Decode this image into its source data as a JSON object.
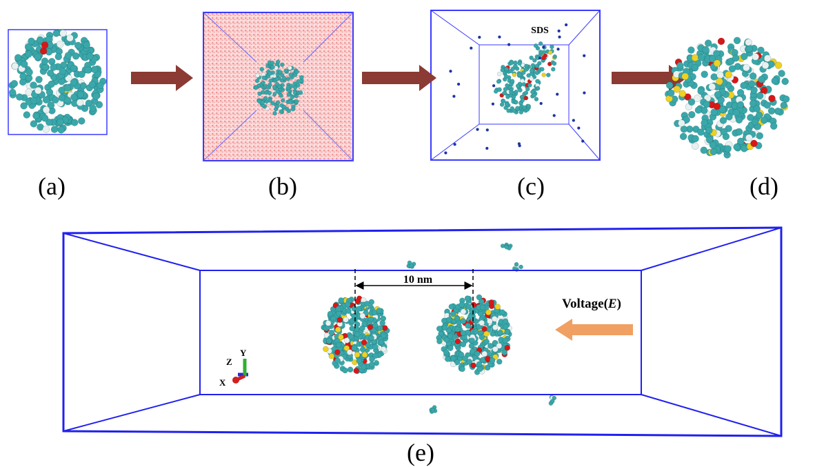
{
  "panels": {
    "a": "(a)",
    "b": "(b)",
    "c": "(c)",
    "d": "(d)",
    "e": "(e)"
  },
  "annotations": {
    "sds": "SDS",
    "distance": "10 nm",
    "voltage": [
      "Voltage(",
      "E",
      ")"
    ],
    "axes": {
      "x": "X",
      "y": "Y",
      "z": "Z"
    }
  }
}
